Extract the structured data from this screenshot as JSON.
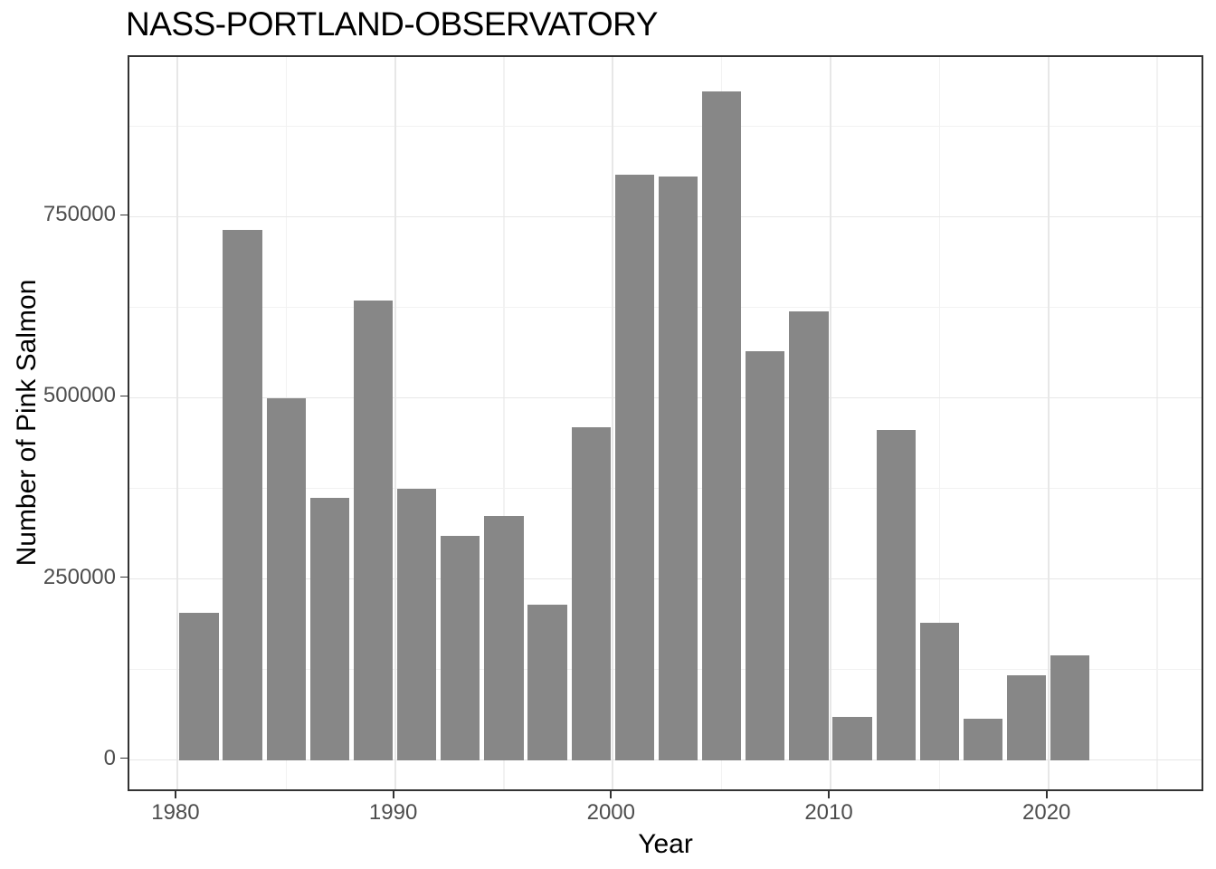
{
  "title": "NASS-PORTLAND-OBSERVATORY",
  "x_axis": {
    "label": "Year",
    "tick_labels": [
      "1980",
      "1990",
      "2000",
      "2010",
      "2020"
    ]
  },
  "y_axis": {
    "label": "Number of Pink Salmon",
    "tick_labels": [
      "0",
      "250000",
      "500000",
      "750000"
    ]
  },
  "chart_data": {
    "type": "bar",
    "title": "NASS-PORTLAND-OBSERVATORY",
    "xlabel": "Year",
    "ylabel": "Number of Pink Salmon",
    "categories": [
      1981,
      1983,
      1985,
      1987,
      1989,
      1991,
      1993,
      1995,
      1997,
      1999,
      2001,
      2003,
      2005,
      2007,
      2009,
      2011,
      2013,
      2015,
      2017,
      2019,
      2021
    ],
    "values": [
      203000,
      732000,
      499000,
      362000,
      634000,
      374000,
      309000,
      337000,
      214000,
      460000,
      808000,
      806000,
      923000,
      564000,
      619000,
      59000,
      456000,
      189000,
      57000,
      117000,
      144000
    ],
    "bar_width_years": 1.8,
    "x_major_ticks": [
      1980,
      1990,
      2000,
      2010,
      2020
    ],
    "x_minor_gridlines": [
      1985,
      1995,
      2005,
      2015,
      2025
    ],
    "y_major_ticks": [
      0,
      250000,
      500000,
      750000
    ],
    "y_minor_gridlines": [
      125000,
      375000,
      625000,
      875000
    ],
    "xlim": [
      1977.8,
      2027.2
    ],
    "ylim": [
      -45600,
      970600
    ],
    "grid": true,
    "legend": "none",
    "colors": {
      "bar": "#878787",
      "grid_major": "#e7e7e7",
      "grid_minor": "#f2f2f2",
      "tick_text": "#4d4d4d",
      "axis_title_text": "#000000",
      "title_text": "#000000",
      "panel_border": "#333333",
      "background": "#ffffff"
    }
  }
}
